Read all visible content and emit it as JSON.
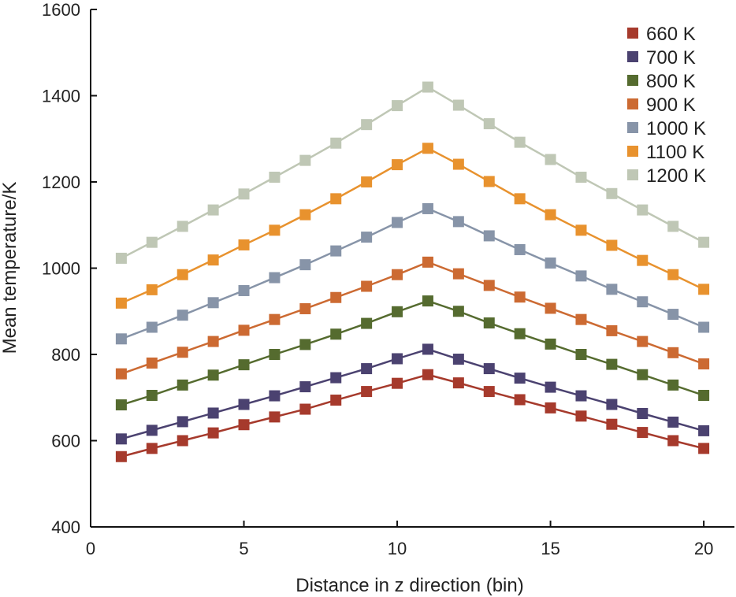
{
  "chart_data": {
    "type": "line",
    "title": "",
    "xlabel": "Distance in z direction (bin)",
    "ylabel": "Mean temperature/K",
    "xlim": [
      0,
      21
    ],
    "ylim": [
      400,
      1600
    ],
    "xticks": [
      0,
      5,
      10,
      15,
      20
    ],
    "yticks": [
      400,
      600,
      800,
      1000,
      1200,
      1400,
      1600
    ],
    "legend_position": "top-right",
    "x": [
      1,
      2,
      3,
      4,
      5,
      6,
      7,
      8,
      9,
      10,
      11,
      12,
      13,
      14,
      15,
      16,
      17,
      18,
      19,
      20
    ],
    "series": [
      {
        "name": "660 K",
        "color": "#a63a2c",
        "values": [
          563,
          582,
          600,
          618,
          637,
          655,
          673,
          694,
          714,
          733,
          753,
          734,
          714,
          695,
          676,
          657,
          638,
          619,
          600,
          582
        ]
      },
      {
        "name": "700 K",
        "color": "#4b4270",
        "values": [
          604,
          624,
          644,
          664,
          684,
          704,
          725,
          746,
          767,
          790,
          812,
          789,
          767,
          745,
          724,
          704,
          684,
          663,
          643,
          623
        ]
      },
      {
        "name": "800 K",
        "color": "#556b2f",
        "values": [
          683,
          705,
          729,
          752,
          776,
          800,
          823,
          847,
          872,
          899,
          924,
          900,
          873,
          848,
          824,
          800,
          777,
          753,
          729,
          705
        ]
      },
      {
        "name": "900 K",
        "color": "#cc6a32",
        "values": [
          755,
          780,
          805,
          830,
          856,
          881,
          906,
          932,
          958,
          985,
          1014,
          987,
          960,
          933,
          907,
          881,
          855,
          830,
          804,
          778
        ]
      },
      {
        "name": "1000 K",
        "color": "#8794a8",
        "values": [
          836,
          863,
          891,
          920,
          948,
          978,
          1008,
          1040,
          1072,
          1106,
          1138,
          1108,
          1075,
          1043,
          1012,
          982,
          951,
          922,
          893,
          863
        ]
      },
      {
        "name": "1100 K",
        "color": "#e8922e",
        "values": [
          919,
          950,
          985,
          1019,
          1054,
          1088,
          1124,
          1161,
          1200,
          1240,
          1278,
          1241,
          1201,
          1161,
          1124,
          1088,
          1053,
          1018,
          985,
          951
        ]
      },
      {
        "name": "1200 K",
        "color": "#bfc7b5",
        "values": [
          1023,
          1060,
          1097,
          1135,
          1172,
          1211,
          1250,
          1290,
          1333,
          1377,
          1420,
          1378,
          1335,
          1292,
          1252,
          1211,
          1173,
          1135,
          1097,
          1060
        ]
      }
    ]
  }
}
